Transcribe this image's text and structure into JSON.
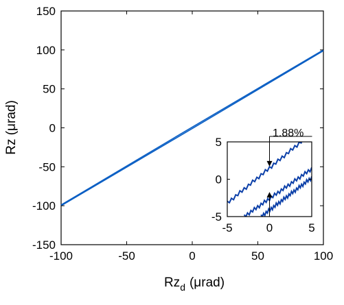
{
  "chart_data": [
    {
      "type": "line",
      "title": "",
      "xlabel_main": "Rz",
      "xlabel_sub": "d",
      "xlabel_unit": "(μrad)",
      "ylabel": "Rz (μrad)",
      "xlim": [
        -100,
        100
      ],
      "ylim": [
        -150,
        150
      ],
      "x_ticks": [
        "-100",
        "-50",
        "0",
        "50",
        "100"
      ],
      "y_ticks": [
        "150",
        "100",
        "50",
        "0",
        "-50",
        "-100",
        "-150"
      ],
      "grid": false,
      "line_color": "#0b5fc4",
      "series": [
        {
          "x": [
            -100,
            0,
            100
          ],
          "y": [
            -99,
            1,
            100
          ]
        },
        {
          "x": [
            -100,
            0,
            100
          ],
          "y": [
            -100,
            -1,
            99
          ]
        }
      ]
    },
    {
      "type": "line",
      "xlim": [
        -5,
        5
      ],
      "ylim": [
        -5,
        5
      ],
      "x_ticks": [
        "-5",
        "0",
        "5"
      ],
      "y_ticks": [
        "5",
        "0",
        "-5"
      ],
      "line_color": "#0b3fa8",
      "series": [
        {
          "x": [
            -5,
            5
          ],
          "y": [
            -3.2,
            6.2
          ]
        },
        {
          "x": [
            -3,
            5
          ],
          "y": [
            -5,
            1.4
          ]
        },
        {
          "x": [
            -1,
            5
          ],
          "y": [
            -5,
            0.2
          ]
        }
      ],
      "annotation": {
        "text": "1.88%",
        "x": 0,
        "y_top": 1.8,
        "y_bottom": -1.8
      }
    }
  ]
}
